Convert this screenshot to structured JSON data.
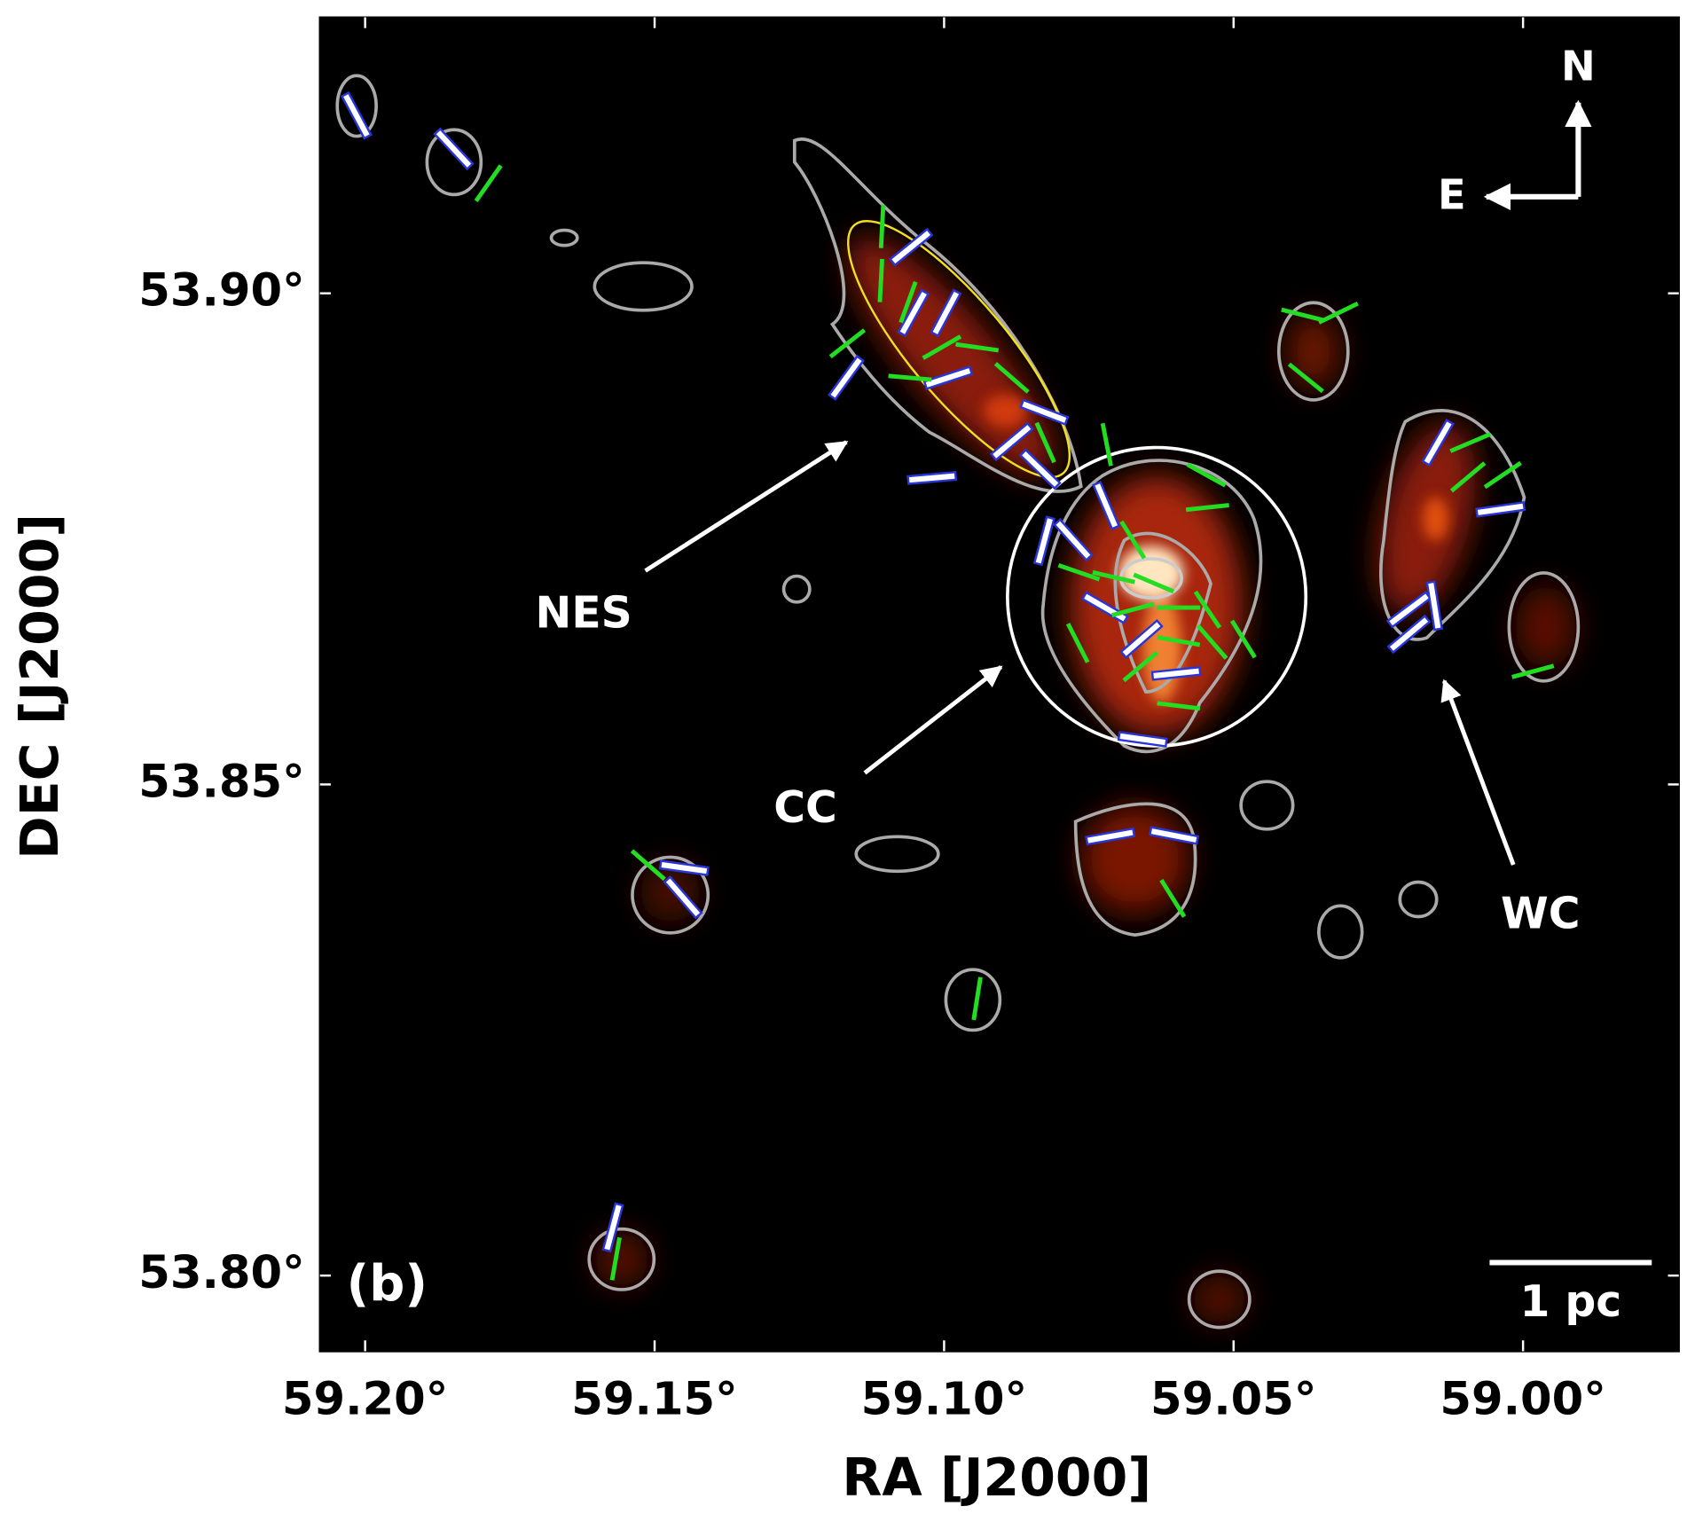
{
  "chart_data": {
    "type": "quiver",
    "xlabel": "RA [J2000]",
    "ylabel": "DEC [J2000]",
    "xlim": [
      59.2078,
      58.9731
    ],
    "ylim": [
      53.7923,
      53.9281
    ],
    "xticks": [
      {
        "value": 59.2,
        "label": "59.20°"
      },
      {
        "value": 59.15,
        "label": "59.15°"
      },
      {
        "value": 59.1,
        "label": "59.10°"
      },
      {
        "value": 59.05,
        "label": "59.05°"
      },
      {
        "value": 59.0,
        "label": "59.00°"
      }
    ],
    "yticks": [
      {
        "value": 53.8,
        "label": "53.80°"
      },
      {
        "value": 53.85,
        "label": "53.85°"
      },
      {
        "value": 53.9,
        "label": "53.90°"
      }
    ],
    "series": [
      {
        "color": "#2a35d8",
        "x": [
          59.2015,
          59.1847,
          59.1057,
          59.1053,
          59.0997,
          59.0993,
          59.1169,
          59.0827,
          59.0883,
          59.0834,
          59.1021,
          59.072,
          59.0777,
          59.0827,
          59.0722,
          59.0659,
          59.0599,
          59.0657,
          59.0713,
          59.0603,
          59.1449,
          59.1451,
          59.0147,
          59.0039,
          59.0197,
          59.0197,
          59.0153,
          59.1572
        ],
        "y": [
          53.9181,
          53.9147,
          53.9047,
          53.898,
          53.898,
          53.8914,
          53.8914,
          53.8879,
          53.8849,
          53.8821,
          53.8812,
          53.8784,
          53.8749,
          53.8748,
          53.868,
          53.8648,
          53.8613,
          53.8546,
          53.8447,
          53.8448,
          53.8415,
          53.8385,
          53.8848,
          53.878,
          53.8678,
          53.8653,
          53.8682,
          53.8049
        ],
        "angle": [
          28,
          43,
          129,
          151,
          152,
          108,
          144,
          69,
          130,
          46,
          95,
          23,
          42,
          165,
          60,
          131,
          96,
          82,
          100,
          79,
          82,
          41,
          150,
          98,
          127,
          130,
          9,
          165
        ]
      },
      {
        "color": "#22dd22",
        "x": [
          59.1787,
          59.1107,
          59.1109,
          59.1062,
          59.1167,
          59.1004,
          59.0943,
          59.1059,
          59.0883,
          59.0825,
          59.0719,
          59.0547,
          59.0545,
          59.0381,
          59.0319,
          59.0375,
          59.0091,
          59.0095,
          59.0035,
          58.9983,
          59.0674,
          59.0767,
          59.0707,
          59.0638,
          59.0674,
          59.0595,
          59.0545,
          59.0537,
          59.0483,
          59.0595,
          59.0769,
          59.0661,
          59.0595,
          59.1511,
          59.0605,
          59.0943,
          59.1567
        ],
        "y": [
          53.9112,
          53.9068,
          53.9013,
          53.8991,
          53.8949,
          53.8945,
          53.8945,
          53.8914,
          53.8914,
          53.8848,
          53.8846,
          53.8815,
          53.8782,
          53.8978,
          53.898,
          53.8914,
          53.8848,
          53.8813,
          53.8815,
          53.8615,
          53.8749,
          53.8716,
          53.8711,
          53.8705,
          53.8678,
          53.868,
          53.8678,
          53.8645,
          53.8648,
          53.8646,
          53.8644,
          53.862,
          53.858,
          53.8418,
          53.8384,
          53.8282,
          53.8017
        ],
        "angle": [
          145,
          177,
          177,
          160,
          128,
          120,
          82,
          85,
          49,
          24,
          11,
          61,
          96,
          76,
          116,
          51,
          113,
          130,
          124,
          105,
          32,
          71,
          77,
          67,
          105,
          90,
          34,
          41,
          32,
          80,
          27,
          130,
          83,
          49,
          32,
          171,
          170
        ]
      }
    ],
    "panel_label": "(b)",
    "compass": {
      "north": "N",
      "east": "E"
    },
    "scale_bar": "1 pc",
    "annotations": [
      "NES",
      "CC",
      "WC"
    ]
  }
}
